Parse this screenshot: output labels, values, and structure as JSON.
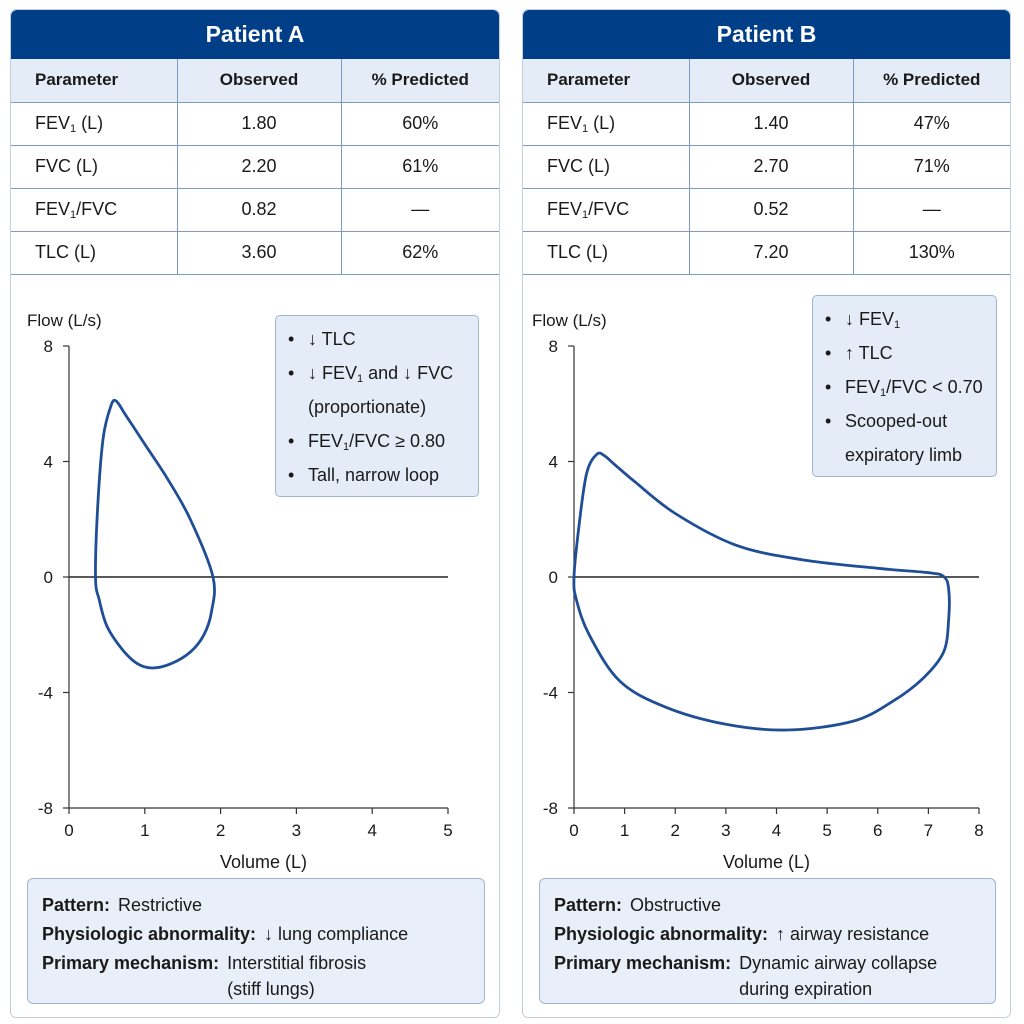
{
  "panels": [
    {
      "title": "Patient A",
      "table": {
        "headers": [
          "Parameter",
          "Observed",
          "% Predicted"
        ],
        "rows": [
          {
            "param_main": "FEV",
            "param_sub": "1",
            "param_tail": " (L)",
            "observed": "1.80",
            "predicted": "60%"
          },
          {
            "param_main": "FVC (L)",
            "param_sub": "",
            "param_tail": "",
            "observed": "2.20",
            "predicted": "61%"
          },
          {
            "param_main": "FEV",
            "param_sub": "1",
            "param_tail": "/FVC",
            "observed": "0.82",
            "predicted": "—"
          },
          {
            "param_main": "TLC (L)",
            "param_sub": "",
            "param_tail": "",
            "observed": "3.60",
            "predicted": "62%"
          }
        ]
      },
      "callout": [
        {
          "pre": "↓ TLC",
          "sub": "",
          "post": "",
          "cont": ""
        },
        {
          "pre": "↓ FEV",
          "sub": "1",
          "post": " and ↓ FVC",
          "cont": "(proportionate)"
        },
        {
          "pre": "FEV",
          "sub": "1",
          "post": "/FVC ≥ 0.80",
          "cont": ""
        },
        {
          "pre": "Tall, narrow loop",
          "sub": "",
          "post": "",
          "cont": ""
        }
      ],
      "summary": {
        "pattern_label": "Pattern:",
        "pattern": "Restrictive",
        "abnormality_label": "Physiologic abnormality:",
        "abnormality": "↓ lung compliance",
        "mechanism_label": "Primary mechanism:",
        "mechanism": "Interstitial fibrosis",
        "mechanism_2": "(stiff lungs)"
      }
    },
    {
      "title": "Patient B",
      "table": {
        "headers": [
          "Parameter",
          "Observed",
          "% Predicted"
        ],
        "rows": [
          {
            "param_main": "FEV",
            "param_sub": "1",
            "param_tail": " (L)",
            "observed": "1.40",
            "predicted": "47%"
          },
          {
            "param_main": "FVC (L)",
            "param_sub": "",
            "param_tail": "",
            "observed": "2.70",
            "predicted": "71%"
          },
          {
            "param_main": "FEV",
            "param_sub": "1",
            "param_tail": "/FVC",
            "observed": "0.52",
            "predicted": "—"
          },
          {
            "param_main": "TLC (L)",
            "param_sub": "",
            "param_tail": "",
            "observed": "7.20",
            "predicted": "130%"
          }
        ]
      },
      "callout": [
        {
          "pre": "↓ FEV",
          "sub": "1",
          "post": "",
          "cont": ""
        },
        {
          "pre": "↑ TLC",
          "sub": "",
          "post": "",
          "cont": ""
        },
        {
          "pre": "FEV",
          "sub": "1",
          "post": "/FVC < 0.70",
          "cont": ""
        },
        {
          "pre": "Scooped-out",
          "sub": "",
          "post": "",
          "cont": "expiratory limb"
        }
      ],
      "summary": {
        "pattern_label": "Pattern:",
        "pattern": "Obstructive",
        "abnormality_label": "Physiologic abnormality:",
        "abnormality": "↑ airway resistance",
        "mechanism_label": "Primary mechanism:",
        "mechanism": "Dynamic airway collapse",
        "mechanism_2": "during expiration"
      }
    }
  ],
  "chart_data": [
    {
      "type": "line",
      "title": "",
      "xlabel": "Volume (L)",
      "ylabel": "Flow (L/s)",
      "xlim": [
        0,
        5
      ],
      "ylim": [
        -8,
        8
      ],
      "xticks": [
        0,
        1,
        2,
        3,
        4,
        5
      ],
      "yticks": [
        8,
        4,
        0,
        -4,
        -8
      ],
      "line_color": "#1f4e96",
      "series": [
        {
          "points": [
            [
              0.35,
              0
            ],
            [
              0.38,
              2.5
            ],
            [
              0.45,
              4.8
            ],
            [
              0.55,
              5.9
            ],
            [
              0.62,
              6.1
            ],
            [
              0.75,
              5.6
            ],
            [
              1.0,
              4.6
            ],
            [
              1.3,
              3.4
            ],
            [
              1.6,
              2.0
            ],
            [
              1.9,
              0
            ],
            [
              1.88,
              -1.2
            ],
            [
              1.78,
              -2.0
            ],
            [
              1.6,
              -2.6
            ],
            [
              1.35,
              -3.0
            ],
            [
              1.1,
              -3.15
            ],
            [
              0.9,
              -3.0
            ],
            [
              0.7,
              -2.5
            ],
            [
              0.5,
              -1.7
            ],
            [
              0.4,
              -0.8
            ],
            [
              0.35,
              0
            ]
          ]
        }
      ]
    },
    {
      "type": "line",
      "title": "",
      "xlabel": "Volume (L)",
      "ylabel": "Flow (L/s)",
      "xlim": [
        0,
        8
      ],
      "ylim": [
        -8,
        8
      ],
      "xticks": [
        0,
        1,
        2,
        3,
        4,
        5,
        6,
        7,
        8
      ],
      "yticks": [
        8,
        4,
        0,
        -4,
        -8
      ],
      "line_color": "#1f4e96",
      "series": [
        {
          "points": [
            [
              0.0,
              0
            ],
            [
              0.1,
              1.8
            ],
            [
              0.25,
              3.6
            ],
            [
              0.45,
              4.25
            ],
            [
              0.6,
              4.2
            ],
            [
              0.8,
              3.9
            ],
            [
              1.2,
              3.3
            ],
            [
              2.0,
              2.2
            ],
            [
              3.2,
              1.1
            ],
            [
              4.5,
              0.6
            ],
            [
              6.0,
              0.3
            ],
            [
              7.0,
              0.15
            ],
            [
              7.3,
              0.02
            ],
            [
              7.4,
              -0.4
            ],
            [
              7.4,
              -1.5
            ],
            [
              7.3,
              -2.6
            ],
            [
              6.9,
              -3.5
            ],
            [
              6.3,
              -4.3
            ],
            [
              5.5,
              -5.0
            ],
            [
              4.2,
              -5.3
            ],
            [
              3.0,
              -5.1
            ],
            [
              1.8,
              -4.5
            ],
            [
              0.9,
              -3.6
            ],
            [
              0.3,
              -2.0
            ],
            [
              0.05,
              -0.8
            ],
            [
              0.0,
              0
            ]
          ]
        }
      ]
    }
  ]
}
